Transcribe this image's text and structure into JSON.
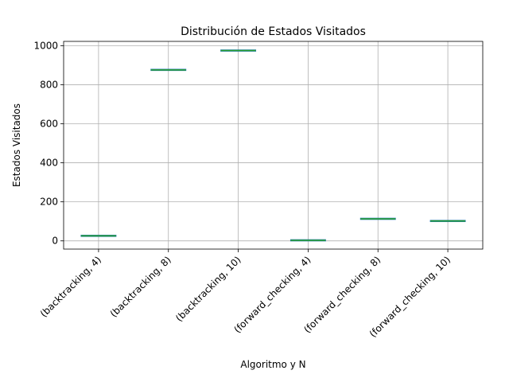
{
  "chart_data": {
    "type": "box",
    "title": "Distribución de Estados Visitados",
    "xlabel": "Algoritmo y N",
    "ylabel": "Estados Visitados",
    "categories": [
      "(backtracking, 4)",
      "(backtracking, 8)",
      "(backtracking, 10)",
      "(forward_checking, 4)",
      "(forward_checking, 8)",
      "(forward_checking, 10)"
    ],
    "values": [
      26,
      876,
      975,
      3,
      113,
      102
    ],
    "ylim": [
      -42,
      1022
    ],
    "yticks": [
      0,
      200,
      400,
      600,
      800,
      1000
    ],
    "grid": true,
    "colors": {
      "box": "#1f77b4",
      "median": "#2ca02c",
      "grid": "#b0b0b0",
      "axes": "#000000"
    }
  }
}
